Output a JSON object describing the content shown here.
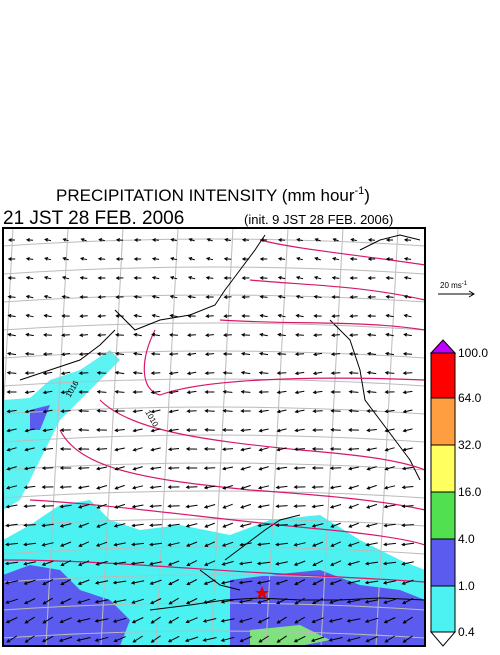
{
  "header": {
    "title_main": "PRECIPITATION INTENSITY (mm hour",
    "title_sup": "-1",
    "title_end": ")",
    "valid_time": "21 JST 28 FEB. 2006",
    "init_time": "(init. 9 JST 28 FEB. 2006)"
  },
  "reference_vector": {
    "label_main": "20 ms",
    "label_sup": "-1"
  },
  "contour_labels": [
    "1016",
    "1010"
  ],
  "colorbar": {
    "labels": [
      "100.0",
      "64.0",
      "32.0",
      "16.0",
      "4.0",
      "1.0",
      "0.4"
    ]
  }
}
